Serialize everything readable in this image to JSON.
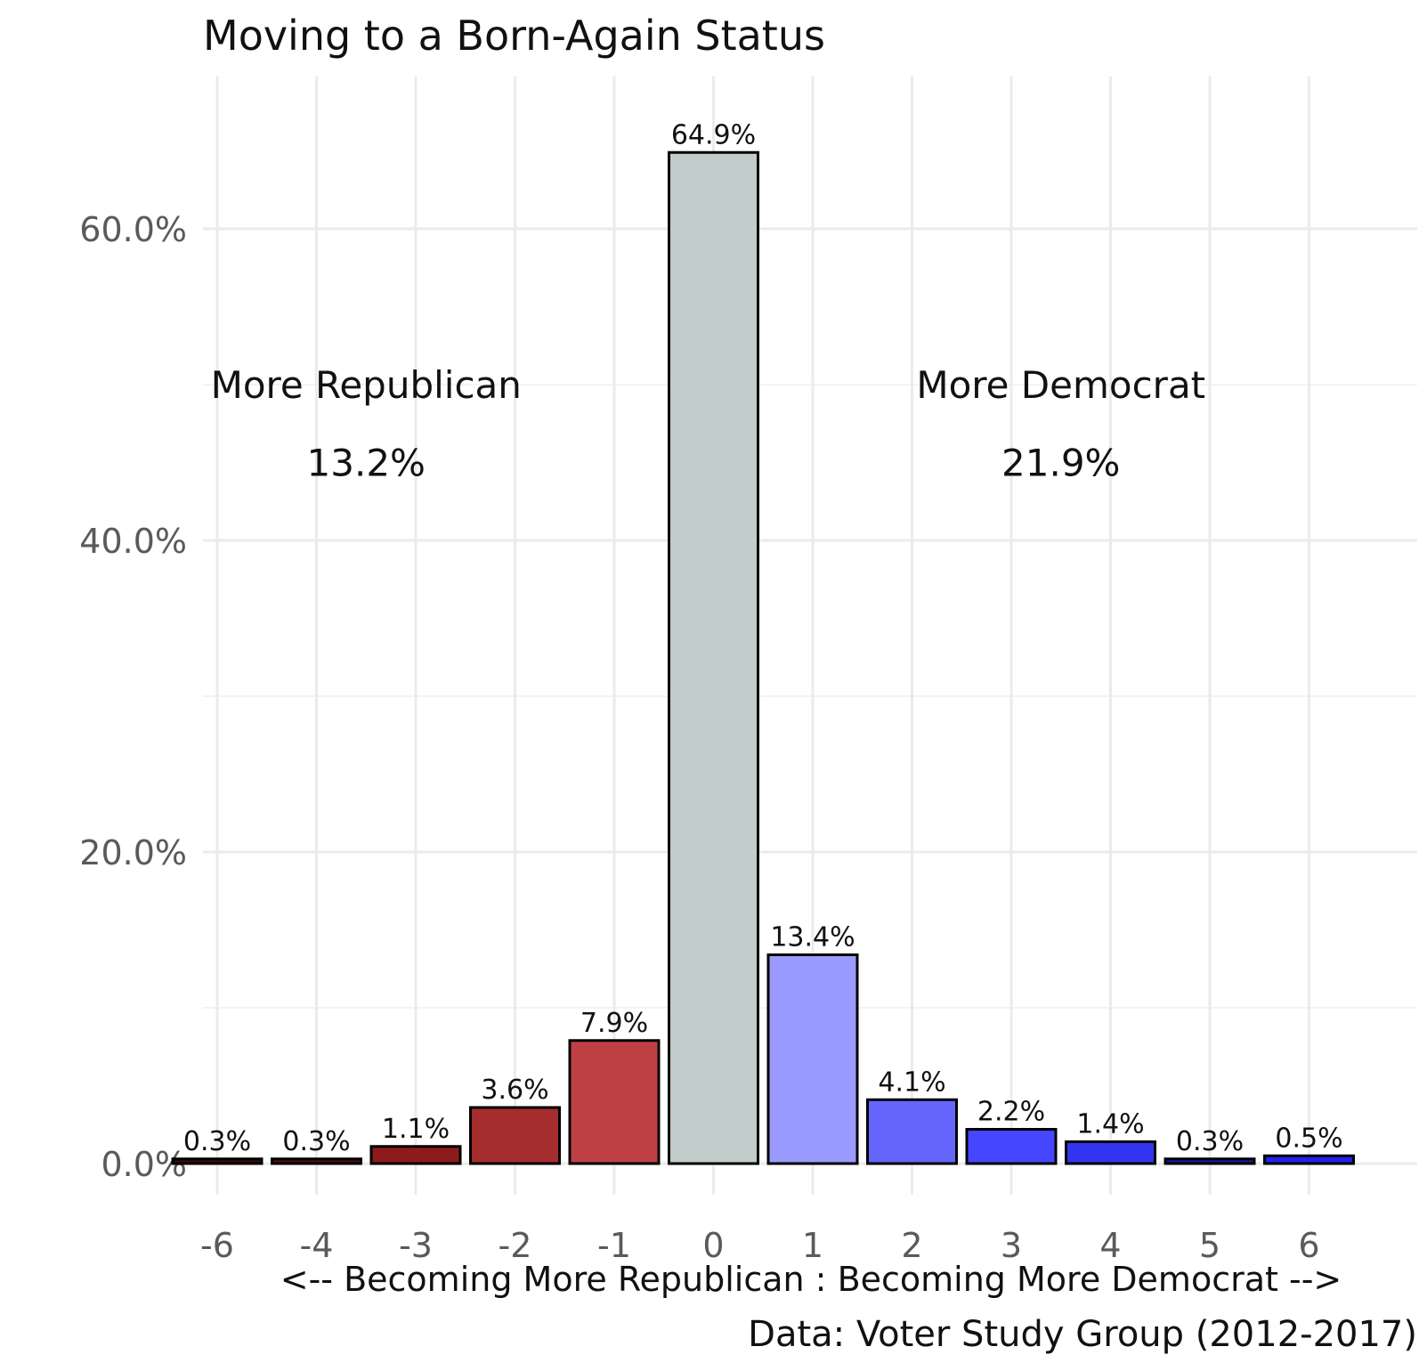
{
  "chart_data": {
    "type": "bar",
    "title": "Moving to a Born-Again Status",
    "xlabel": "<-- Becoming More Republican : Becoming More Democrat -->",
    "ylabel": "",
    "caption": "Data: Voter Study Group (2012-2017)",
    "categories": [
      "-6",
      "-4",
      "-3",
      "-2",
      "-1",
      "0",
      "1",
      "2",
      "3",
      "4",
      "5",
      "6"
    ],
    "values": [
      0.3,
      0.3,
      1.1,
      3.6,
      7.9,
      64.9,
      13.4,
      4.1,
      2.2,
      1.4,
      0.3,
      0.5
    ],
    "value_labels": [
      "0.3%",
      "0.3%",
      "1.1%",
      "3.6%",
      "7.9%",
      "64.9%",
      "13.4%",
      "4.1%",
      "2.2%",
      "1.4%",
      "0.3%",
      "0.5%"
    ],
    "bar_colors": [
      "#3a0b0b",
      "#4a1010",
      "#8e1b1b",
      "#a52c2f",
      "#bf4044",
      "#c2cccb",
      "#9b9bff",
      "#6666ff",
      "#4646ff",
      "#3333f0",
      "#1a1a99",
      "#2222ee"
    ],
    "ylim": [
      0,
      68
    ],
    "y_ticks": [
      0,
      20,
      40,
      60
    ],
    "y_tick_labels": [
      "0.0%",
      "20.0%",
      "40.0%",
      "60.0%"
    ],
    "grid": true,
    "annotations": [
      {
        "label": "More Republican",
        "value": "13.2%",
        "x_center": -3.5,
        "y_label": 50,
        "y_value": 45
      },
      {
        "label": "More Democrat",
        "value": "21.9%",
        "x_center": 3.5,
        "y_label": 50,
        "y_value": 45
      }
    ]
  }
}
